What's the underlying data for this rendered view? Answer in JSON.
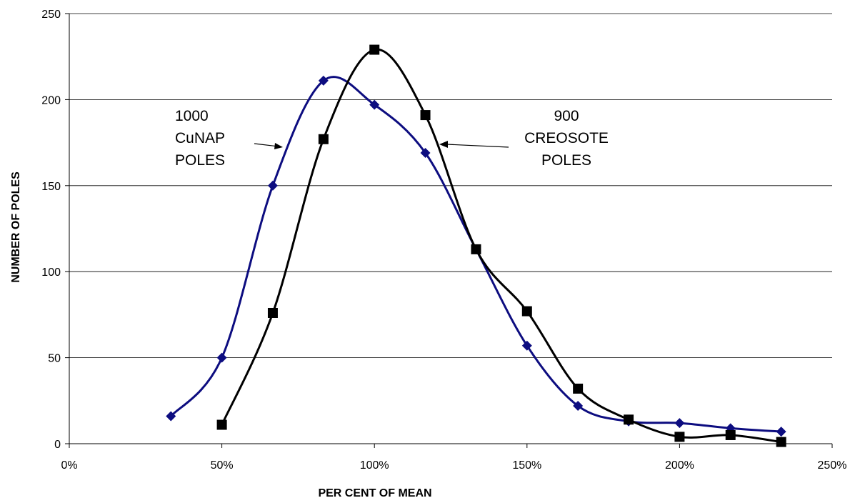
{
  "chart_data": {
    "type": "line",
    "xlabel": "PER CENT OF MEAN",
    "ylabel": "NUMBER OF POLES",
    "xlim": [
      0,
      250
    ],
    "ylim": [
      0,
      250
    ],
    "x_ticks": [
      "0%",
      "50%",
      "100%",
      "150%",
      "200%",
      "250%"
    ],
    "y_ticks": [
      "0",
      "50",
      "100",
      "150",
      "200",
      "250"
    ],
    "grid": "horizontal",
    "legend": "none",
    "series": [
      {
        "color": "#0d0d80",
        "marker": "diamond",
        "x": [
          33.3,
          50,
          66.7,
          83.3,
          100,
          116.7,
          133.3,
          150,
          166.7,
          183.3,
          200,
          216.7,
          233.3
        ],
        "y": [
          16,
          50,
          150,
          211,
          197,
          169,
          113,
          57,
          22,
          13,
          12,
          9,
          7
        ]
      },
      {
        "color": "#000000",
        "marker": "square",
        "x": [
          50,
          66.7,
          83.3,
          100,
          116.7,
          133.3,
          150,
          166.7,
          183.3,
          200,
          216.7,
          233.3
        ],
        "y": [
          11,
          76,
          177,
          229,
          191,
          113,
          77,
          32,
          14,
          4,
          5,
          1
        ]
      }
    ],
    "annotations": [
      {
        "lines": [
          "1000",
          "CuNAP",
          "POLES"
        ]
      },
      {
        "lines": [
          "900",
          "CREOSOTE",
          "POLES"
        ]
      }
    ]
  }
}
